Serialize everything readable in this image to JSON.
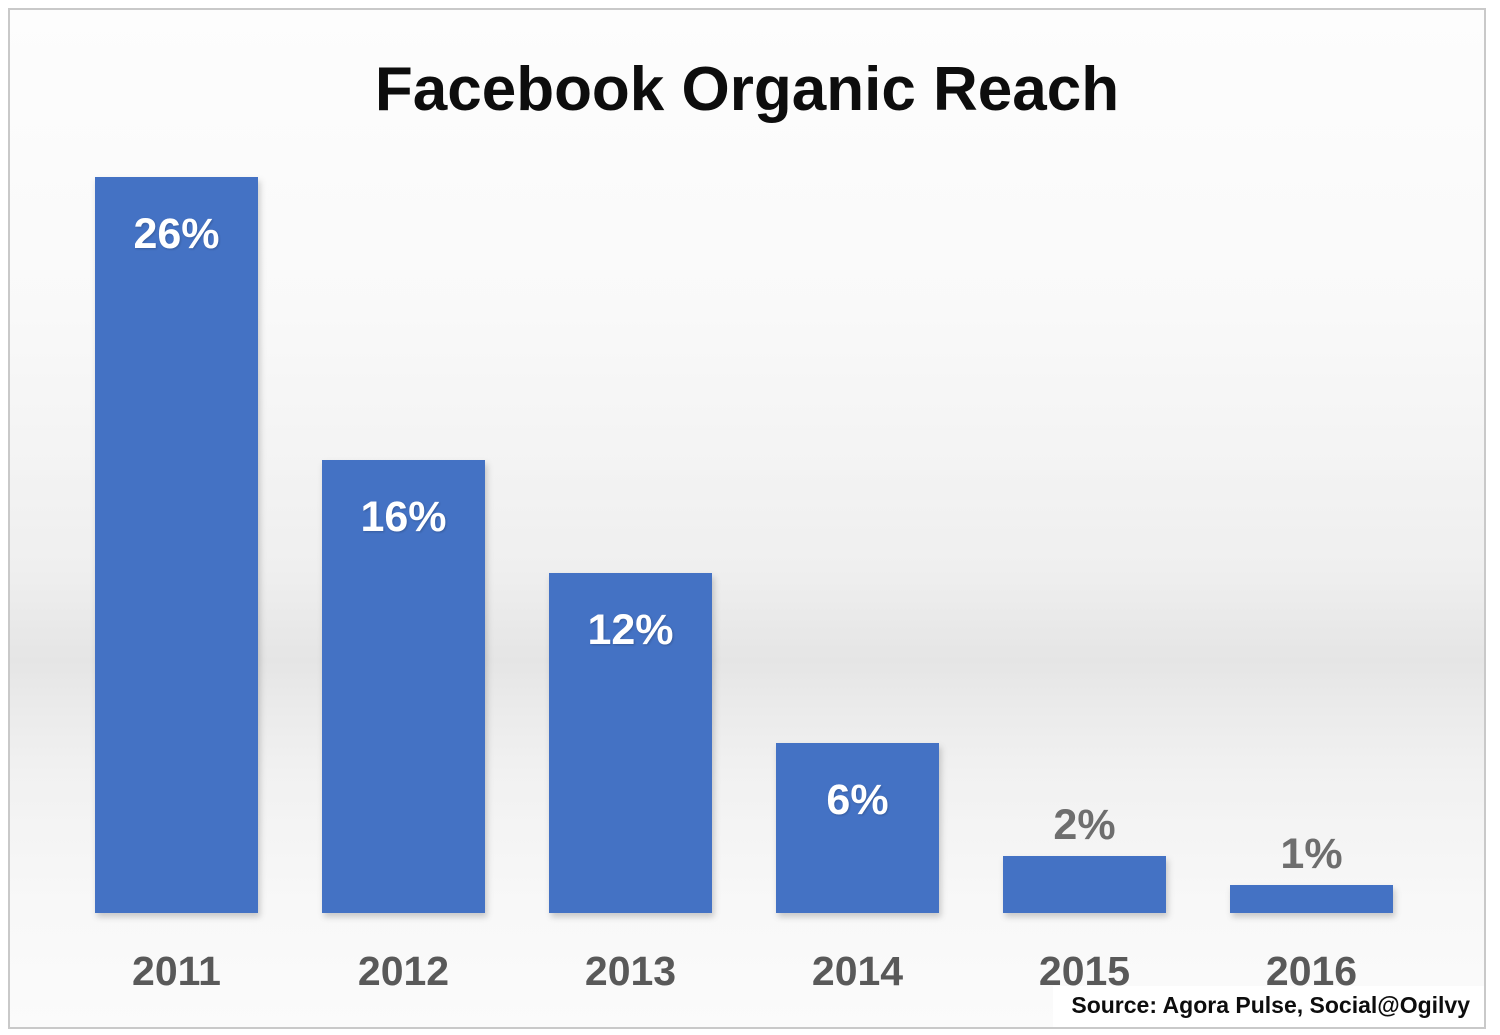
{
  "title": "Facebook Organic Reach",
  "source": "Source: Agora Pulse, Social@Ogilvy",
  "chart_data": {
    "type": "bar",
    "title": "Facebook Organic Reach",
    "categories": [
      "2011",
      "2012",
      "2013",
      "2014",
      "2015",
      "2016"
    ],
    "values": [
      26,
      16,
      12,
      6,
      2,
      1
    ],
    "data_labels": [
      "26%",
      "16%",
      "12%",
      "6%",
      "2%",
      "1%"
    ],
    "label_positions": [
      "inside",
      "inside",
      "inside",
      "inside",
      "outside",
      "outside"
    ],
    "xlabel": "",
    "ylabel": "",
    "ylim": [
      0,
      26
    ],
    "grid": false,
    "legend": false,
    "bar_color": "#4472C4",
    "inside_label_color": "#ffffff",
    "outside_label_color": "#6e6e6e",
    "axis_label_color": "#595959",
    "source": "Source: Agora Pulse, Social@Ogilvy"
  },
  "frame": {
    "border_color": "#c9c9c9"
  }
}
